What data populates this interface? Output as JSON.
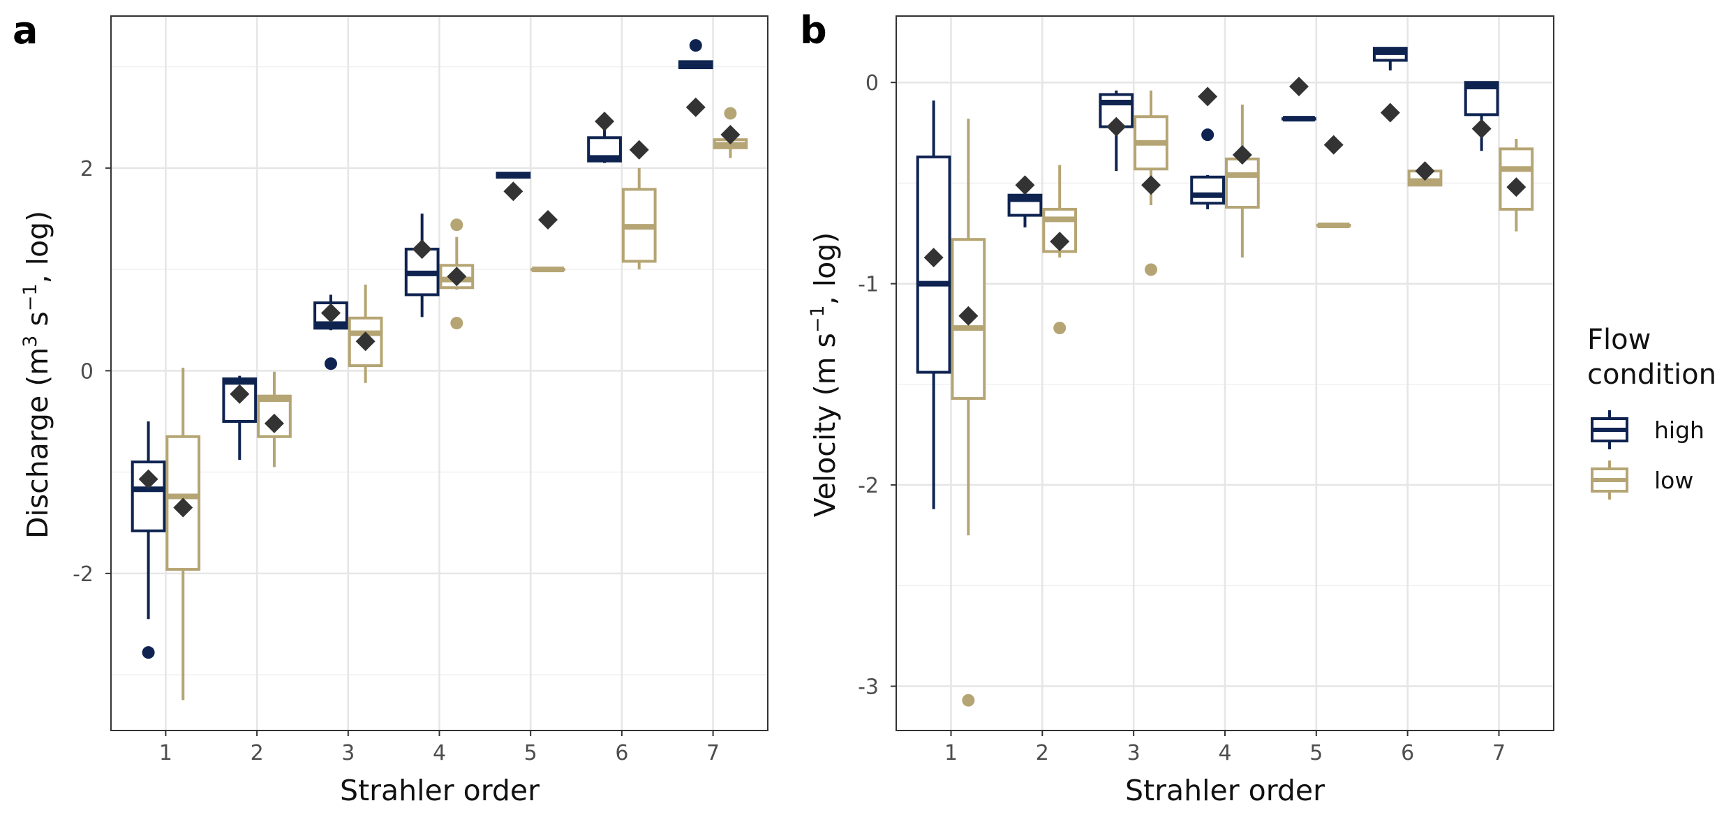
{
  "colors": {
    "high": "#0e2350",
    "low": "#b5a574",
    "mean": "#333333",
    "grid": "#e6e6e6"
  },
  "legend": {
    "title_line1": "Flow",
    "title_line2": "condition",
    "items": [
      {
        "label": "high",
        "color": "#0e2350"
      },
      {
        "label": "low",
        "color": "#b5a574"
      }
    ]
  },
  "chart_data": [
    {
      "panel_label": "a",
      "type": "box",
      "xlabel": "Strahler order",
      "ylabel": "Discharge (m",
      "ylabel_sup1": "3",
      "ylabel_mid": " s",
      "ylabel_sup2": "−1",
      "ylabel_end": ", log)",
      "categories": [
        "1",
        "2",
        "3",
        "4",
        "5",
        "6",
        "7"
      ],
      "ylim": [
        -3.55,
        3.5
      ],
      "yticks": [
        -2,
        0,
        2
      ],
      "ytick_labels": [
        "-2",
        "0",
        "2"
      ],
      "series": [
        {
          "name": "high",
          "boxes": [
            {
              "x": "1",
              "q1": -1.58,
              "median": -1.17,
              "q3": -0.9,
              "wlo": -2.45,
              "whi": -0.5,
              "mean": -1.07,
              "outliers": [
                -2.78
              ]
            },
            {
              "x": "2",
              "q1": -0.5,
              "median": -0.11,
              "q3": -0.08,
              "wlo": -0.88,
              "whi": -0.05,
              "mean": -0.23,
              "outliers": []
            },
            {
              "x": "3",
              "q1": 0.42,
              "median": 0.46,
              "q3": 0.67,
              "wlo": 0.4,
              "whi": 0.75,
              "mean": 0.57,
              "outliers": [
                0.07
              ]
            },
            {
              "x": "4",
              "q1": 0.75,
              "median": 0.96,
              "q3": 1.2,
              "wlo": 0.53,
              "whi": 1.55,
              "mean": 1.2,
              "outliers": []
            },
            {
              "x": "5",
              "q1": 1.91,
              "median": 1.93,
              "q3": 1.95,
              "wlo": 1.91,
              "whi": 1.95,
              "mean": 1.77,
              "outliers": []
            },
            {
              "x": "6",
              "q1": 2.07,
              "median": 2.1,
              "q3": 2.3,
              "wlo": 2.05,
              "whi": 2.4,
              "mean": 2.46,
              "outliers": []
            },
            {
              "x": "7",
              "q1": 2.99,
              "median": 3.01,
              "q3": 3.05,
              "wlo": 2.99,
              "whi": 3.05,
              "mean": 2.6,
              "outliers": [
                3.21
              ]
            }
          ]
        },
        {
          "name": "low",
          "boxes": [
            {
              "x": "1",
              "q1": -1.96,
              "median": -1.24,
              "q3": -0.65,
              "wlo": -3.25,
              "whi": 0.03,
              "mean": -1.35,
              "outliers": []
            },
            {
              "x": "2",
              "q1": -0.65,
              "median": -0.28,
              "q3": -0.25,
              "wlo": -0.95,
              "whi": -0.01,
              "mean": -0.52,
              "outliers": []
            },
            {
              "x": "3",
              "q1": 0.05,
              "median": 0.37,
              "q3": 0.52,
              "wlo": -0.12,
              "whi": 0.85,
              "mean": 0.29,
              "outliers": []
            },
            {
              "x": "4",
              "q1": 0.82,
              "median": 0.9,
              "q3": 1.04,
              "wlo": 0.8,
              "whi": 1.32,
              "mean": 0.93,
              "outliers": [
                1.44,
                0.47
              ]
            },
            {
              "x": "5",
              "q1": 1.0,
              "median": 1.0,
              "q3": 1.0,
              "wlo": 1.0,
              "whi": 1.0,
              "mean": 1.49,
              "outliers": []
            },
            {
              "x": "6",
              "q1": 1.08,
              "median": 1.42,
              "q3": 1.79,
              "wlo": 1.0,
              "whi": 2.0,
              "mean": 2.18,
              "outliers": []
            },
            {
              "x": "7",
              "q1": 2.2,
              "median": 2.23,
              "q3": 2.28,
              "wlo": 2.1,
              "whi": 2.3,
              "mean": 2.33,
              "outliers": [
                2.54
              ]
            }
          ]
        }
      ]
    },
    {
      "panel_label": "b",
      "type": "box",
      "xlabel": "Strahler order",
      "ylabel": "Velocity (m s",
      "ylabel_sup1": "",
      "ylabel_mid": "",
      "ylabel_sup2": "−1",
      "ylabel_end": ", log)",
      "categories": [
        "1",
        "2",
        "3",
        "4",
        "5",
        "6",
        "7"
      ],
      "ylim": [
        -3.22,
        0.33
      ],
      "yticks": [
        -3,
        -2,
        -1,
        0
      ],
      "ytick_labels": [
        "-3",
        "-2",
        "-1",
        "0"
      ],
      "series": [
        {
          "name": "high",
          "boxes": [
            {
              "x": "1",
              "q1": -1.44,
              "median": -1.0,
              "q3": -0.37,
              "wlo": -2.12,
              "whi": -0.09,
              "mean": -0.87,
              "outliers": []
            },
            {
              "x": "2",
              "q1": -0.66,
              "median": -0.58,
              "q3": -0.56,
              "wlo": -0.72,
              "whi": -0.55,
              "mean": -0.51,
              "outliers": []
            },
            {
              "x": "3",
              "q1": -0.22,
              "median": -0.1,
              "q3": -0.06,
              "wlo": -0.44,
              "whi": -0.04,
              "mean": -0.22,
              "outliers": []
            },
            {
              "x": "4",
              "q1": -0.6,
              "median": -0.56,
              "q3": -0.47,
              "wlo": -0.63,
              "whi": -0.46,
              "mean": -0.07,
              "outliers": [
                -0.26
              ]
            },
            {
              "x": "5",
              "q1": -0.18,
              "median": -0.18,
              "q3": -0.18,
              "wlo": -0.18,
              "whi": -0.18,
              "mean": -0.02,
              "outliers": []
            },
            {
              "x": "6",
              "q1": 0.11,
              "median": 0.15,
              "q3": 0.17,
              "wlo": 0.06,
              "whi": 0.17,
              "mean": -0.15,
              "outliers": []
            },
            {
              "x": "7",
              "q1": -0.16,
              "median": -0.02,
              "q3": 0.0,
              "wlo": -0.34,
              "whi": 0.0,
              "mean": -0.23,
              "outliers": []
            }
          ]
        },
        {
          "name": "low",
          "boxes": [
            {
              "x": "1",
              "q1": -1.57,
              "median": -1.22,
              "q3": -0.78,
              "wlo": -2.25,
              "whi": -0.18,
              "mean": -1.16,
              "outliers": [
                -3.07
              ]
            },
            {
              "x": "2",
              "q1": -0.84,
              "median": -0.68,
              "q3": -0.63,
              "wlo": -0.87,
              "whi": -0.41,
              "mean": -0.79,
              "outliers": [
                -1.22
              ]
            },
            {
              "x": "3",
              "q1": -0.43,
              "median": -0.3,
              "q3": -0.17,
              "wlo": -0.61,
              "whi": -0.04,
              "mean": -0.51,
              "outliers": [
                -0.93
              ]
            },
            {
              "x": "4",
              "q1": -0.62,
              "median": -0.46,
              "q3": -0.38,
              "wlo": -0.87,
              "whi": -0.11,
              "mean": -0.36,
              "outliers": []
            },
            {
              "x": "5",
              "q1": -0.71,
              "median": -0.71,
              "q3": -0.71,
              "wlo": -0.71,
              "whi": -0.71,
              "mean": -0.31,
              "outliers": []
            },
            {
              "x": "6",
              "q1": -0.51,
              "median": -0.49,
              "q3": -0.44,
              "wlo": -0.51,
              "whi": -0.4,
              "mean": -0.44,
              "outliers": []
            },
            {
              "x": "7",
              "q1": -0.63,
              "median": -0.43,
              "q3": -0.33,
              "wlo": -0.74,
              "whi": -0.28,
              "mean": -0.52,
              "outliers": []
            }
          ]
        }
      ]
    }
  ]
}
